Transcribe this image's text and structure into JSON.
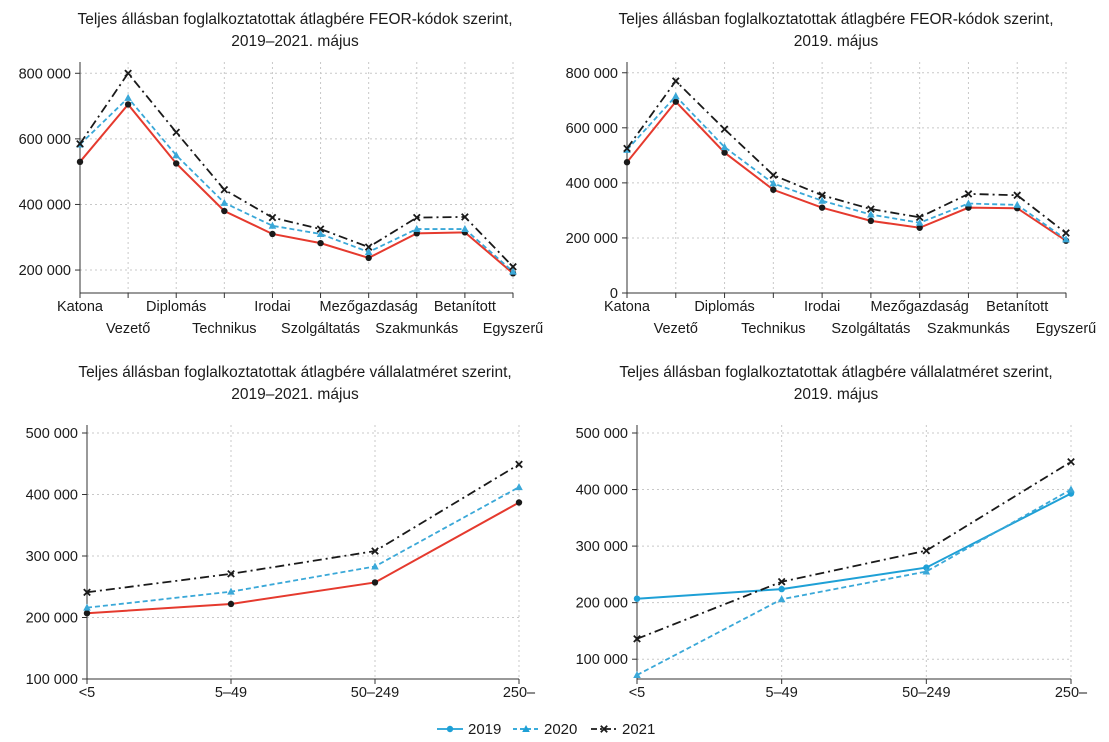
{
  "colors": {
    "2019": "#1ea0d6",
    "2020": "#3aa8d8",
    "2021": "#1a1a1a",
    "red": "#e53a2e"
  },
  "legend": [
    {
      "label": "2019",
      "color": "#1ea0d6",
      "marker": "circle",
      "dash": "solid"
    },
    {
      "label": "2020",
      "color": "#1ea0d6",
      "marker": "triangle",
      "dash": "dashed"
    },
    {
      "label": "2021",
      "color": "#1a1a1a",
      "marker": "cross",
      "dash": "dashdot"
    }
  ],
  "chart_data": [
    {
      "type": "line",
      "title": [
        "Teljes állásban foglalkoztatottak átlagbére FEOR-kódok szerint,",
        "2019–2021. május"
      ],
      "categories": [
        "Katona",
        "Vezető",
        "Diplomás",
        "Technikus",
        "Irodai",
        "Szolgáltatás",
        "Mezőgazdaság",
        "Szakmunkás",
        "Betanított",
        "Egyszerű"
      ],
      "yticks": [
        "200 000",
        "400 000",
        "600 000",
        "800 000"
      ],
      "ylim": [
        130000,
        810000
      ],
      "grid": true,
      "series": [
        {
          "name": "2019",
          "color": "#e53a2e",
          "dash": "solid",
          "marker": "circle",
          "values": [
            530000,
            705000,
            525000,
            380000,
            310000,
            282000,
            237000,
            312000,
            315000,
            190000
          ]
        },
        {
          "name": "2020",
          "color": "#3aa8d8",
          "dash": "dashed",
          "marker": "triangle",
          "values": [
            583000,
            725000,
            550000,
            405000,
            335000,
            310000,
            255000,
            325000,
            325000,
            195000
          ]
        },
        {
          "name": "2021",
          "color": "#1a1a1a",
          "dash": "dashdot",
          "marker": "cross",
          "values": [
            585000,
            800000,
            620000,
            445000,
            360000,
            325000,
            270000,
            360000,
            362000,
            210000
          ]
        }
      ]
    },
    {
      "type": "line",
      "title": [
        "Teljes állásban foglalkoztatottak átlagbére FEOR-kódok szerint,",
        "2019. május"
      ],
      "categories": [
        "Katona",
        "Vezető",
        "Diplomás",
        "Technikus",
        "Irodai",
        "Szolgáltatás",
        "Mezőgazdaság",
        "Szakmunkás",
        "Betanított",
        "Egyszerű"
      ],
      "yticks": [
        "0",
        "200 000",
        "400 000",
        "600 000",
        "800 000"
      ],
      "ylim": [
        0,
        810000
      ],
      "grid": true,
      "series": [
        {
          "name": "2019",
          "color": "#e53a2e",
          "dash": "solid",
          "marker": "circle",
          "values": [
            475000,
            695000,
            510000,
            375000,
            310000,
            262000,
            237000,
            310000,
            308000,
            190000
          ]
        },
        {
          "name": "2020",
          "color": "#3aa8d8",
          "dash": "dashed",
          "marker": "triangle",
          "values": [
            520000,
            715000,
            530000,
            398000,
            335000,
            285000,
            255000,
            325000,
            320000,
            195000
          ]
        },
        {
          "name": "2021",
          "color": "#1a1a1a",
          "dash": "dashdot",
          "marker": "cross",
          "values": [
            525000,
            770000,
            595000,
            428000,
            355000,
            305000,
            275000,
            360000,
            355000,
            218000
          ]
        }
      ]
    },
    {
      "type": "line",
      "title": [
        "Teljes állásban foglalkoztatottak átlagbére vállalatméret szerint,",
        "2019–2021. május"
      ],
      "categories": [
        "<5",
        "5–49",
        "50–249",
        "250–"
      ],
      "yticks": [
        "100 000",
        "200 000",
        "300 000",
        "400 000",
        "500 000"
      ],
      "ylim": [
        100000,
        500000
      ],
      "grid": true,
      "series": [
        {
          "name": "2019",
          "color": "#e53a2e",
          "dash": "solid",
          "marker": "circle",
          "values": [
            207000,
            222000,
            257000,
            387000
          ]
        },
        {
          "name": "2020",
          "color": "#3aa8d8",
          "dash": "dashed",
          "marker": "triangle",
          "values": [
            216000,
            242000,
            283000,
            412000
          ]
        },
        {
          "name": "2021",
          "color": "#1a1a1a",
          "dash": "dashdot",
          "marker": "cross",
          "values": [
            241000,
            271000,
            308000,
            449000
          ]
        }
      ]
    },
    {
      "type": "line",
      "title": [
        "Teljes állásban foglalkoztatottak átlagbére vállalatméret szerint,",
        "2019. május"
      ],
      "categories": [
        "<5",
        "5–49",
        "50–249",
        "250–"
      ],
      "yticks": [
        "100 000",
        "200 000",
        "300 000",
        "400 000",
        "500 000"
      ],
      "ylim": [
        65000,
        500000
      ],
      "grid": true,
      "series": [
        {
          "name": "2019",
          "color": "#1ea0d6",
          "dash": "solid",
          "marker": "circle",
          "values": [
            207000,
            224000,
            262000,
            393000
          ]
        },
        {
          "name": "2020",
          "color": "#3aa8d8",
          "dash": "dashed",
          "marker": "triangle",
          "values": [
            72000,
            206000,
            255000,
            400000
          ]
        },
        {
          "name": "2021",
          "color": "#1a1a1a",
          "dash": "dashdot",
          "marker": "cross",
          "values": [
            136000,
            237000,
            292000,
            449000
          ]
        }
      ]
    }
  ]
}
